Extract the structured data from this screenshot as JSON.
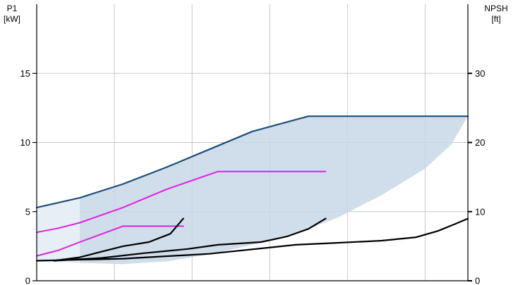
{
  "chart_data": {
    "type": "line",
    "title": "",
    "left_axis": {
      "label_line1": "P1",
      "label_line2": "[kW]",
      "ylim": [
        0,
        20
      ],
      "ticks": [
        0,
        5,
        10,
        15
      ],
      "tick_labels": [
        "0",
        "5",
        "10",
        "15"
      ]
    },
    "right_axis": {
      "label_line1": "NPSH",
      "label_line2": "[ft]",
      "ylim": [
        0,
        40
      ],
      "ticks": [
        0,
        10,
        20,
        30
      ],
      "tick_labels": [
        "0",
        "10",
        "20",
        "30"
      ]
    },
    "x_axis": {
      "xlim": [
        0,
        1
      ],
      "tick_labels": []
    },
    "grid": true,
    "colors": {
      "envelope_fill": "#c8d7e6",
      "envelope_light_fill": "#e6eef6",
      "max_power_line": "#1f4e79",
      "magenta_lines": "#e020e0",
      "npsh_lines": "#000000",
      "grid": "#c8c8c8"
    },
    "envelope": {
      "upper": [
        [
          0,
          5.3
        ],
        [
          0.1,
          6.0
        ],
        [
          0.2,
          7.0
        ],
        [
          0.3,
          8.2
        ],
        [
          0.4,
          9.5
        ],
        [
          0.5,
          10.8
        ],
        [
          0.63,
          11.9
        ],
        [
          1.0,
          11.9
        ]
      ],
      "lower": [
        [
          0,
          1.4
        ],
        [
          0.1,
          1.3
        ],
        [
          0.2,
          1.2
        ],
        [
          0.3,
          1.4
        ],
        [
          0.4,
          1.9
        ],
        [
          0.5,
          2.6
        ],
        [
          0.6,
          3.4
        ],
        [
          0.7,
          4.6
        ],
        [
          0.8,
          6.2
        ],
        [
          0.9,
          8.1
        ],
        [
          0.96,
          9.8
        ],
        [
          1.0,
          11.9
        ]
      ],
      "light_region_right_edge_x": 0.1
    },
    "series": [
      {
        "kind": "max_power",
        "points": [
          [
            0,
            5.3
          ],
          [
            0.1,
            6.0
          ],
          [
            0.2,
            7.0
          ],
          [
            0.3,
            8.2
          ],
          [
            0.4,
            9.5
          ],
          [
            0.5,
            10.8
          ],
          [
            0.63,
            11.9
          ],
          [
            1.0,
            11.9
          ]
        ]
      },
      {
        "kind": "power",
        "points": [
          [
            0,
            3.5
          ],
          [
            0.05,
            3.8
          ],
          [
            0.1,
            4.2
          ],
          [
            0.2,
            5.3
          ],
          [
            0.3,
            6.6
          ],
          [
            0.42,
            7.9
          ],
          [
            0.67,
            7.9
          ]
        ]
      },
      {
        "kind": "power",
        "points": [
          [
            0,
            1.8
          ],
          [
            0.05,
            2.2
          ],
          [
            0.1,
            2.8
          ],
          [
            0.2,
            3.95
          ],
          [
            0.34,
            3.95
          ]
        ]
      },
      {
        "kind": "npsh",
        "axis": "right",
        "points": [
          [
            0.04,
            2.9
          ],
          [
            0.1,
            3.4
          ],
          [
            0.15,
            4.2
          ],
          [
            0.2,
            5.0
          ],
          [
            0.26,
            5.6
          ],
          [
            0.31,
            6.8
          ],
          [
            0.34,
            9.0
          ]
        ]
      },
      {
        "kind": "npsh",
        "axis": "right",
        "points": [
          [
            0.04,
            2.9
          ],
          [
            0.15,
            3.3
          ],
          [
            0.25,
            4.0
          ],
          [
            0.35,
            4.6
          ],
          [
            0.42,
            5.2
          ],
          [
            0.52,
            5.6
          ],
          [
            0.58,
            6.4
          ],
          [
            0.63,
            7.5
          ],
          [
            0.67,
            9.0
          ]
        ]
      },
      {
        "kind": "npsh",
        "axis": "right",
        "points": [
          [
            0.0,
            2.9
          ],
          [
            0.2,
            3.2
          ],
          [
            0.4,
            3.9
          ],
          [
            0.6,
            5.2
          ],
          [
            0.7,
            5.5
          ],
          [
            0.8,
            5.8
          ],
          [
            0.88,
            6.3
          ],
          [
            0.93,
            7.2
          ],
          [
            0.97,
            8.2
          ],
          [
            1.0,
            9.0
          ]
        ]
      }
    ]
  }
}
